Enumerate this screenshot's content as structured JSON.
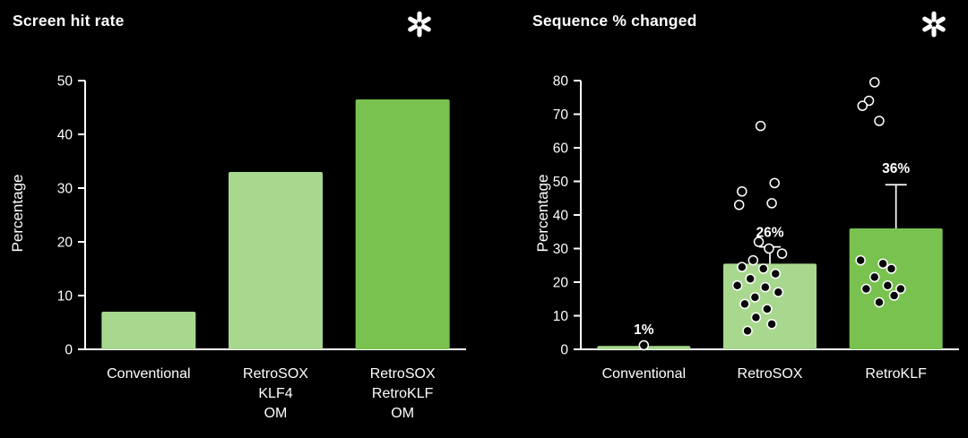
{
  "page": {
    "background": "#000000",
    "text_color": "#ffffff",
    "accent_light_green": "#a8d88e",
    "accent_dark_green": "#79c250"
  },
  "chart_data": [
    {
      "type": "bar",
      "title": "Screen hit rate",
      "ylabel": "Percentage",
      "ylim": [
        0,
        50
      ],
      "yticks": [
        0,
        10,
        20,
        30,
        40,
        50
      ],
      "grid": false,
      "legend": false,
      "categories": [
        [
          "Conventional"
        ],
        [
          "RetroSOX",
          "KLF4",
          "OM"
        ],
        [
          "RetroSOX",
          "RetroKLF",
          "OM"
        ]
      ],
      "values": [
        7,
        33,
        46.5
      ],
      "bar_colors": [
        "#a8d88e",
        "#a8d88e",
        "#79c250"
      ]
    },
    {
      "type": "bar",
      "title": "Sequence % changed",
      "ylabel": "Percentage",
      "ylim": [
        0,
        80
      ],
      "yticks": [
        0,
        10,
        20,
        30,
        40,
        50,
        60,
        70,
        80
      ],
      "grid": false,
      "legend": false,
      "categories": [
        [
          "Conventional"
        ],
        [
          "RetroSOX"
        ],
        [
          "RetroKLF"
        ]
      ],
      "values": [
        1,
        25.5,
        36
      ],
      "bar_colors": [
        "#a8d88e",
        "#a8d88e",
        "#79c250"
      ],
      "bar_labels": [
        "1%",
        "26%",
        "36%"
      ],
      "label_y": [
        4.5,
        33.5,
        52.5
      ],
      "errors": [
        null,
        30.5,
        49
      ],
      "scatter": [
        [
          [
            0.0,
            1.2
          ]
        ],
        [
          [
            -0.1,
            66.5
          ],
          [
            -0.3,
            47
          ],
          [
            -0.33,
            43
          ],
          [
            0.05,
            49.5
          ],
          [
            0.02,
            43.5
          ],
          [
            -0.12,
            32
          ],
          [
            -0.01,
            30
          ],
          [
            0.13,
            28.5
          ],
          [
            -0.18,
            26.5
          ],
          [
            -0.3,
            24.5
          ],
          [
            -0.07,
            24
          ],
          [
            0.06,
            22.5
          ],
          [
            -0.21,
            21
          ],
          [
            -0.35,
            19
          ],
          [
            -0.05,
            18.5
          ],
          [
            0.09,
            17
          ],
          [
            -0.16,
            15.5
          ],
          [
            -0.27,
            13.5
          ],
          [
            -0.03,
            12
          ],
          [
            -0.15,
            9.5
          ],
          [
            0.02,
            7.5
          ],
          [
            -0.24,
            5.5
          ]
        ],
        [
          [
            -0.23,
            79.5
          ],
          [
            -0.29,
            74
          ],
          [
            -0.36,
            72.5
          ],
          [
            -0.18,
            68
          ],
          [
            -0.38,
            26.5
          ],
          [
            -0.14,
            25.5
          ],
          [
            -0.05,
            24
          ],
          [
            -0.23,
            21.5
          ],
          [
            -0.09,
            19
          ],
          [
            -0.32,
            18
          ],
          [
            0.05,
            18
          ],
          [
            -0.18,
            14
          ],
          [
            -0.02,
            16
          ]
        ]
      ]
    }
  ]
}
